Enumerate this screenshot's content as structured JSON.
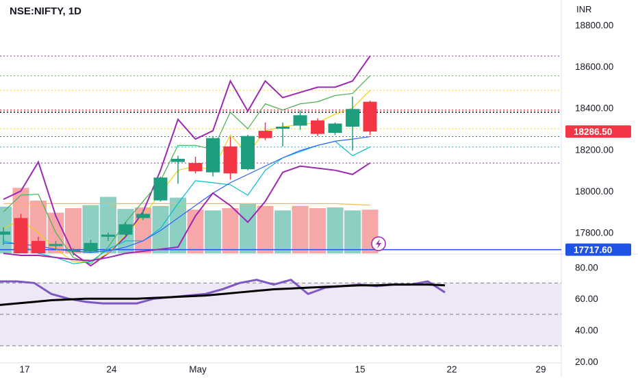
{
  "header": {
    "symbol_title": "NSE:NIFTY, 1D",
    "currency": "INR"
  },
  "colors": {
    "up": "#1e9e7e",
    "down": "#f23645",
    "vol_up": "#8ecfc4",
    "vol_down": "#f6a8a8",
    "rsi_line": "#7e57c2",
    "rsi_ma": "#000000",
    "rsi_band": "#ede7f6",
    "price_badge": "#f23645",
    "ref_badge": "#1e53e5",
    "yellow": "#f2d20e",
    "purple": "#9c27b0",
    "green": "#4caf50",
    "cyan": "#00bcd4",
    "blue": "#2962ff",
    "orange": "#ffb74d"
  },
  "chart_data": [
    {
      "type": "candlestick",
      "symbol": "NSE:NIFTY",
      "interval": "1D",
      "x_ticks": [
        "17",
        "24",
        "May",
        "15",
        "22",
        "29"
      ],
      "y_ticks": [
        "17800.00",
        "18000.00",
        "18200.00",
        "18400.00",
        "18600.00",
        "18800.00"
      ],
      "ylim": [
        17700,
        18920
      ],
      "last_price_label": "18286.50",
      "reference_label": "17717.60",
      "reference_value": 17717.6,
      "horizontal_levels": [
        {
          "value": 18650,
          "style": "dotted",
          "color": "purple"
        },
        {
          "value": 18555,
          "style": "dotted",
          "color": "green"
        },
        {
          "value": 18485,
          "style": "dotted",
          "color": "yellow"
        },
        {
          "value": 18390,
          "style": "dotted",
          "color": "red"
        },
        {
          "value": 18380,
          "style": "dotted",
          "color": "black"
        },
        {
          "value": 18300,
          "style": "dotted",
          "color": "yellow"
        },
        {
          "value": 18262,
          "style": "dotted",
          "color": "blue"
        },
        {
          "value": 18212,
          "style": "dotted",
          "color": "cyan"
        },
        {
          "value": 18135,
          "style": "dotted",
          "color": "purple"
        }
      ],
      "candles": [
        {
          "o": 17790,
          "h": 17825,
          "l": 17740,
          "c": 17805
        },
        {
          "o": 17870,
          "h": 17890,
          "l": 17700,
          "c": 17700
        },
        {
          "o": 17760,
          "h": 17780,
          "l": 17700,
          "c": 17700
        },
        {
          "o": 17735,
          "h": 17760,
          "l": 17715,
          "c": 17745
        },
        {
          "o": 17710,
          "h": 17725,
          "l": 17690,
          "c": 17715
        },
        {
          "o": 17710,
          "h": 17765,
          "l": 17700,
          "c": 17750
        },
        {
          "o": 17780,
          "h": 17800,
          "l": 17760,
          "c": 17790
        },
        {
          "o": 17790,
          "h": 17850,
          "l": 17780,
          "c": 17840
        },
        {
          "o": 17870,
          "h": 17910,
          "l": 17860,
          "c": 17890
        },
        {
          "o": 17955,
          "h": 18070,
          "l": 17950,
          "c": 18065
        },
        {
          "o": 18140,
          "h": 18170,
          "l": 18035,
          "c": 18155
        },
        {
          "o": 18135,
          "h": 18165,
          "l": 18085,
          "c": 18095
        },
        {
          "o": 18090,
          "h": 18265,
          "l": 18070,
          "c": 18255
        },
        {
          "o": 18215,
          "h": 18260,
          "l": 18055,
          "c": 18085
        },
        {
          "o": 18105,
          "h": 18270,
          "l": 18100,
          "c": 18265
        },
        {
          "o": 18290,
          "h": 18330,
          "l": 18245,
          "c": 18255
        },
        {
          "o": 18300,
          "h": 18330,
          "l": 18215,
          "c": 18310
        },
        {
          "o": 18315,
          "h": 18390,
          "l": 18295,
          "c": 18365
        },
        {
          "o": 18340,
          "h": 18350,
          "l": 18265,
          "c": 18275
        },
        {
          "o": 18280,
          "h": 18330,
          "l": 18270,
          "c": 18325
        },
        {
          "o": 18310,
          "h": 18455,
          "l": 18195,
          "c": 18395
        },
        {
          "o": 18430,
          "h": 18435,
          "l": 18270,
          "c": 18286.5
        }
      ],
      "volume": [
        {
          "v": 0.62,
          "dir": "up"
        },
        {
          "v": 0.87,
          "dir": "down"
        },
        {
          "v": 0.7,
          "dir": "down"
        },
        {
          "v": 0.54,
          "dir": "down"
        },
        {
          "v": 0.6,
          "dir": "down"
        },
        {
          "v": 0.64,
          "dir": "up"
        },
        {
          "v": 0.75,
          "dir": "up"
        },
        {
          "v": 0.59,
          "dir": "up"
        },
        {
          "v": 0.61,
          "dir": "down"
        },
        {
          "v": 0.63,
          "dir": "up"
        },
        {
          "v": 0.74,
          "dir": "up"
        },
        {
          "v": 0.58,
          "dir": "down"
        },
        {
          "v": 0.57,
          "dir": "up"
        },
        {
          "v": 0.6,
          "dir": "down"
        },
        {
          "v": 0.66,
          "dir": "up"
        },
        {
          "v": 0.63,
          "dir": "down"
        },
        {
          "v": 0.57,
          "dir": "up"
        },
        {
          "v": 0.63,
          "dir": "down"
        },
        {
          "v": 0.6,
          "dir": "down"
        },
        {
          "v": 0.61,
          "dir": "up"
        },
        {
          "v": 0.57,
          "dir": "up"
        },
        {
          "v": 0.58,
          "dir": "down"
        }
      ],
      "indicator_lines": [
        {
          "color": "purple",
          "values": [
            17960,
            18000,
            18140,
            17880,
            17700,
            17640,
            17700,
            17780,
            17900,
            18100,
            18345,
            18250,
            18290,
            18530,
            18385,
            18530,
            18450,
            18475,
            18500,
            18500,
            18530,
            18650
          ]
        },
        {
          "color": "green",
          "values": [
            17900,
            17980,
            17985,
            17800,
            17680,
            17650,
            17730,
            17850,
            17950,
            18050,
            18220,
            18220,
            18200,
            18380,
            18300,
            18420,
            18390,
            18420,
            18430,
            18460,
            18470,
            18555
          ]
        },
        {
          "color": "yellow",
          "values": [
            17820,
            17860,
            17800,
            17720,
            17660,
            17660,
            17700,
            17790,
            17880,
            17990,
            18100,
            18120,
            18100,
            18270,
            18180,
            18290,
            18310,
            18320,
            18330,
            18370,
            18400,
            18485
          ]
        },
        {
          "color": "cyan",
          "values": [
            17760,
            17740,
            17700,
            17680,
            17650,
            17660,
            17720,
            17760,
            17760,
            17820,
            17940,
            18050,
            18040,
            18030,
            17980,
            18100,
            18160,
            18190,
            18220,
            18240,
            18170,
            18212
          ]
        },
        {
          "color": "blue",
          "values": [
            17750,
            17745,
            17735,
            17720,
            17710,
            17705,
            17712,
            17730,
            17760,
            17810,
            17870,
            17930,
            17990,
            18040,
            18080,
            18120,
            18160,
            18195,
            18220,
            18240,
            18250,
            18262
          ]
        },
        {
          "color": "purple",
          "values": [
            17700,
            17690,
            17690,
            17680,
            17670,
            17665,
            17680,
            17700,
            17710,
            17720,
            17730,
            17880,
            17990,
            17930,
            17850,
            17950,
            18090,
            18120,
            18110,
            18100,
            18080,
            18135
          ]
        }
      ],
      "volume_ma": [
        0.66,
        0.66,
        0.66,
        0.66,
        0.66,
        0.66,
        0.66,
        0.66,
        0.66,
        0.66,
        0.66,
        0.66,
        0.66,
        0.66,
        0.66,
        0.66,
        0.66,
        0.66,
        0.66,
        0.66,
        0.65,
        0.64
      ]
    },
    {
      "type": "line",
      "panel": "rsi",
      "ylim": [
        20,
        88
      ],
      "y_ticks": [
        "20.00",
        "40.00",
        "60.00",
        "80.00"
      ],
      "band": [
        30,
        70
      ],
      "dashed_levels": [
        70,
        50,
        30
      ],
      "series": [
        {
          "color": "rsi_line",
          "values": [
            71,
            71,
            70,
            63,
            60,
            58,
            57,
            57,
            57,
            60,
            61,
            62,
            63,
            66,
            70,
            72,
            69,
            72,
            63,
            67,
            68,
            69,
            68,
            69,
            69,
            71,
            64
          ]
        },
        {
          "color": "rsi_ma",
          "values": [
            56,
            57,
            58,
            59,
            59.5,
            60,
            60,
            60,
            60,
            60.5,
            61,
            61.5,
            62,
            63,
            64,
            65,
            66,
            66.5,
            67,
            67.5,
            68,
            68.5,
            68.5,
            69,
            69,
            69,
            68.5
          ]
        }
      ]
    }
  ]
}
